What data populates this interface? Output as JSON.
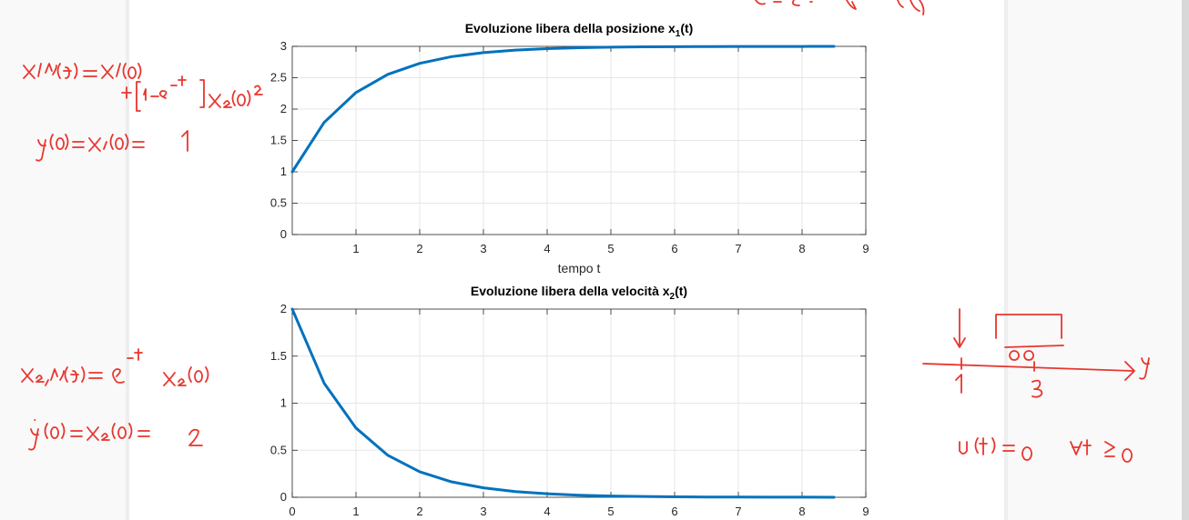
{
  "chart_data": [
    {
      "type": "line",
      "title": "Evoluzione libera della posizione x",
      "title_sub": "1",
      "title_suffix": "(t)",
      "xlabel": "tempo t",
      "ylabel": "",
      "xlim": [
        0,
        9
      ],
      "ylim": [
        0,
        3
      ],
      "xticks": [
        "1",
        "2",
        "3",
        "4",
        "5",
        "6",
        "7",
        "8",
        "9"
      ],
      "yticks": [
        "0",
        "0.5",
        "1",
        "1.5",
        "2",
        "2.5",
        "3"
      ],
      "grid": true,
      "series": [
        {
          "x": [
            0,
            0.5,
            1,
            1.5,
            2,
            2.5,
            3,
            3.5,
            4,
            4.5,
            5,
            5.5,
            6,
            6.5,
            7,
            7.5,
            8,
            8.5
          ],
          "y": [
            1,
            1.787,
            2.264,
            2.554,
            2.729,
            2.836,
            2.9,
            2.94,
            2.963,
            2.978,
            2.987,
            2.992,
            2.995,
            2.997,
            2.998,
            2.999,
            2.999,
            3.0
          ]
        }
      ]
    },
    {
      "type": "line",
      "title": "Evoluzione libera della velocità x",
      "title_sub": "2",
      "title_suffix": "(t)",
      "xlabel": "",
      "ylabel": "",
      "xlim": [
        0,
        9
      ],
      "ylim": [
        0,
        2
      ],
      "xticks": [
        "0",
        "1",
        "2",
        "3",
        "4",
        "5",
        "6",
        "7",
        "8",
        "9"
      ],
      "yticks": [
        "0",
        "0.5",
        "1",
        "1.5",
        "2"
      ],
      "grid": true,
      "series": [
        {
          "x": [
            0,
            0.5,
            1,
            1.5,
            2,
            2.5,
            3,
            3.5,
            4,
            4.5,
            5,
            5.5,
            6,
            6.5,
            7,
            7.5,
            8,
            8.5
          ],
          "y": [
            2,
            1.213,
            0.736,
            0.446,
            0.271,
            0.164,
            0.1,
            0.06,
            0.037,
            0.022,
            0.013,
            0.008,
            0.005,
            0.003,
            0.002,
            0.001,
            0.001,
            0.0
          ]
        }
      ]
    }
  ],
  "annotations": {
    "left": [
      "x1,l(t) = x1(0) + [1-e^-t] x2(0)",
      "y(0) = x1(0) = 1",
      "x2,l(t) = e^-t x2(0)",
      "ẏ(0) = x2(0) = 2"
    ],
    "right": [
      "u(t) = 0  ∀t ≥ 0",
      "1",
      "3",
      "y"
    ]
  },
  "colors": {
    "line": "#0072bd",
    "axes": "#262626",
    "grid": "#e6e6e6",
    "ink": "#e8362f"
  }
}
